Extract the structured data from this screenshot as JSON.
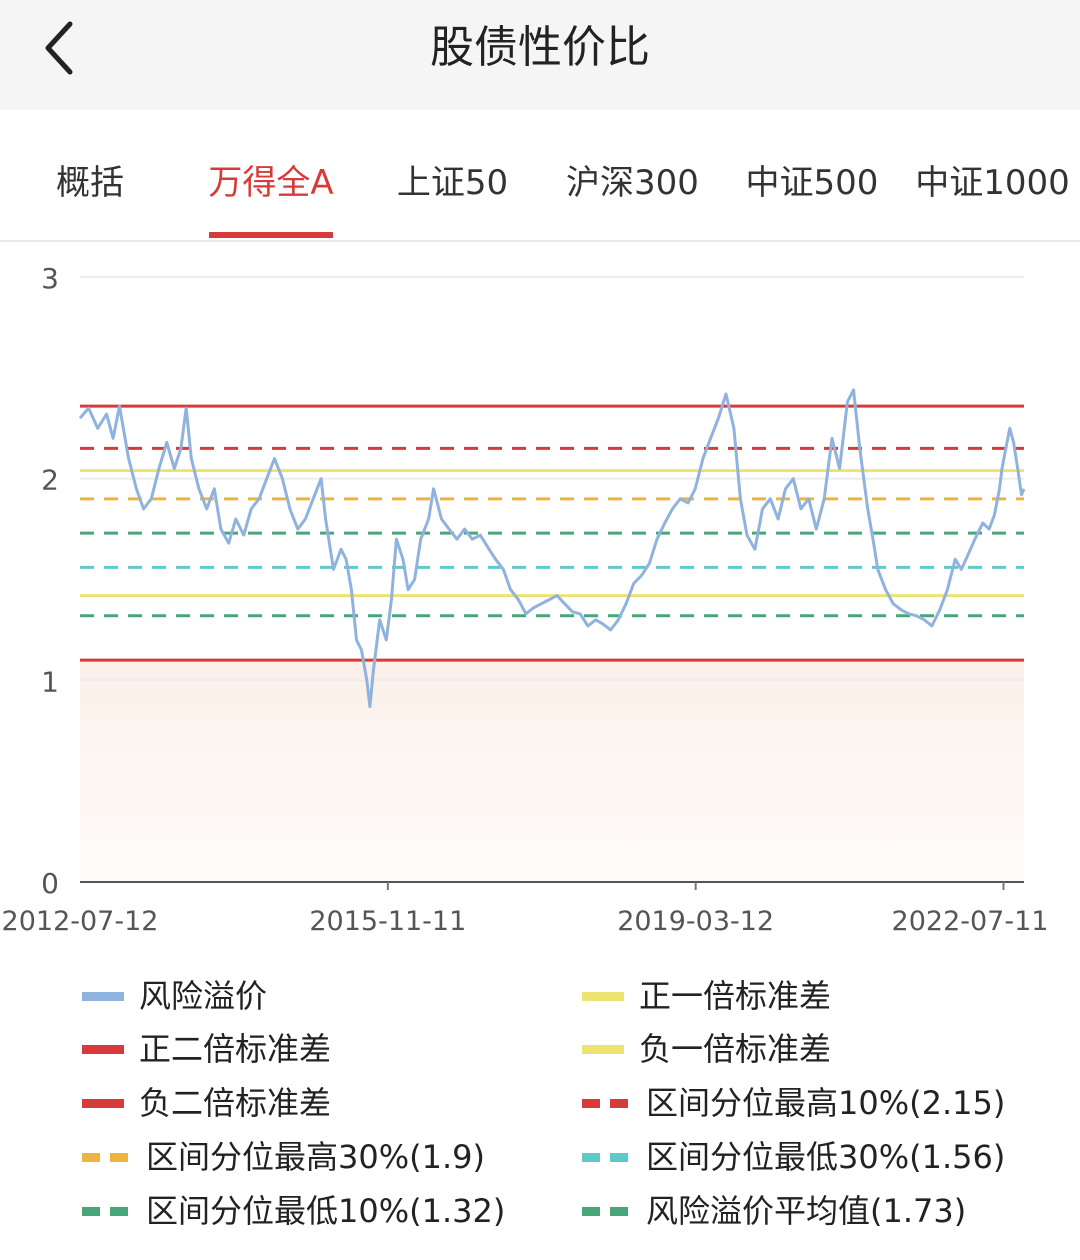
{
  "header": {
    "title": "股债性价比",
    "back_icon": "chevron-left-icon"
  },
  "tabs": [
    {
      "label": "概括",
      "active": false
    },
    {
      "label": "万得全A",
      "active": true
    },
    {
      "label": "上证50",
      "active": false
    },
    {
      "label": "沪深300",
      "active": false
    },
    {
      "label": "中证500",
      "active": false
    },
    {
      "label": "中证1000",
      "active": false
    }
  ],
  "colors": {
    "accent": "#d83a3a",
    "risk": "#8fb3de",
    "red": "#d83a3a",
    "yellow": "#ece470",
    "orange": "#efb43f",
    "cyan": "#5ec9c8",
    "green": "#47a77a"
  },
  "legend": [
    {
      "label": "风险溢价",
      "color": "#8fb3de",
      "style": "solid"
    },
    {
      "label": "正一倍标准差",
      "color": "#ece470",
      "style": "solid"
    },
    {
      "label": "正二倍标准差",
      "color": "#d83a3a",
      "style": "solid"
    },
    {
      "label": "负一倍标准差",
      "color": "#ece470",
      "style": "solid"
    },
    {
      "label": "负二倍标准差",
      "color": "#d83a3a",
      "style": "solid"
    },
    {
      "label": "区间分位最高10%(2.15)",
      "color": "#d83a3a",
      "style": "dashed"
    },
    {
      "label": "区间分位最高30%(1.9)",
      "color": "#efb43f",
      "style": "dashed"
    },
    {
      "label": "区间分位最低30%(1.56)",
      "color": "#5ec9c8",
      "style": "dashed"
    },
    {
      "label": "区间分位最低10%(1.32)",
      "color": "#47a77a",
      "style": "dashed"
    },
    {
      "label": "风险溢价平均值(1.73)",
      "color": "#47a77a",
      "style": "dashed"
    }
  ],
  "chart_data": {
    "type": "line",
    "x_range": [
      "2012-07-12",
      "2022-09-30"
    ],
    "xticks": [
      "2012-07-12",
      "2015-11-11",
      "2019-03-12",
      "2022-07-11"
    ],
    "ylim": [
      0,
      3
    ],
    "yticks": [
      "0",
      "1",
      "2",
      "3"
    ],
    "grid": true,
    "series": [
      {
        "name": "风险溢价",
        "color": "#8fb3de",
        "points": [
          [
            "2012-07-12",
            2.3
          ],
          [
            "2012-08-15",
            2.35
          ],
          [
            "2012-09-20",
            2.25
          ],
          [
            "2012-10-25",
            2.32
          ],
          [
            "2012-11-20",
            2.2
          ],
          [
            "2012-12-15",
            2.36
          ],
          [
            "2013-01-20",
            2.1
          ],
          [
            "2013-02-20",
            1.95
          ],
          [
            "2013-03-20",
            1.85
          ],
          [
            "2013-04-20",
            1.9
          ],
          [
            "2013-05-20",
            2.05
          ],
          [
            "2013-06-20",
            2.18
          ],
          [
            "2013-07-20",
            2.05
          ],
          [
            "2013-08-15",
            2.15
          ],
          [
            "2013-09-05",
            2.35
          ],
          [
            "2013-09-25",
            2.1
          ],
          [
            "2013-10-25",
            1.95
          ],
          [
            "2013-11-25",
            1.85
          ],
          [
            "2013-12-25",
            1.95
          ],
          [
            "2014-01-20",
            1.75
          ],
          [
            "2014-02-20",
            1.68
          ],
          [
            "2014-03-20",
            1.8
          ],
          [
            "2014-04-20",
            1.72
          ],
          [
            "2014-05-20",
            1.85
          ],
          [
            "2014-06-20",
            1.9
          ],
          [
            "2014-07-20",
            2.0
          ],
          [
            "2014-08-20",
            2.1
          ],
          [
            "2014-09-20",
            2.0
          ],
          [
            "2014-10-20",
            1.85
          ],
          [
            "2014-11-20",
            1.75
          ],
          [
            "2014-12-20",
            1.8
          ],
          [
            "2015-01-20",
            1.9
          ],
          [
            "2015-02-20",
            2.0
          ],
          [
            "2015-03-10",
            1.8
          ],
          [
            "2015-04-10",
            1.55
          ],
          [
            "2015-05-10",
            1.65
          ],
          [
            "2015-05-30",
            1.6
          ],
          [
            "2015-06-20",
            1.45
          ],
          [
            "2015-07-10",
            1.2
          ],
          [
            "2015-07-30",
            1.15
          ],
          [
            "2015-08-20",
            1.0
          ],
          [
            "2015-09-01",
            0.87
          ],
          [
            "2015-09-15",
            1.05
          ],
          [
            "2015-10-10",
            1.3
          ],
          [
            "2015-11-05",
            1.2
          ],
          [
            "2015-11-25",
            1.4
          ],
          [
            "2015-12-15",
            1.7
          ],
          [
            "2016-01-10",
            1.6
          ],
          [
            "2016-01-30",
            1.45
          ],
          [
            "2016-02-25",
            1.5
          ],
          [
            "2016-03-20",
            1.7
          ],
          [
            "2016-04-20",
            1.8
          ],
          [
            "2016-05-10",
            1.95
          ],
          [
            "2016-06-10",
            1.8
          ],
          [
            "2016-07-10",
            1.75
          ],
          [
            "2016-08-10",
            1.7
          ],
          [
            "2016-09-10",
            1.75
          ],
          [
            "2016-10-10",
            1.7
          ],
          [
            "2016-11-10",
            1.72
          ],
          [
            "2016-12-10",
            1.66
          ],
          [
            "2017-01-10",
            1.6
          ],
          [
            "2017-02-10",
            1.55
          ],
          [
            "2017-03-10",
            1.45
          ],
          [
            "2017-04-10",
            1.4
          ],
          [
            "2017-05-10",
            1.33
          ],
          [
            "2017-06-10",
            1.36
          ],
          [
            "2017-07-10",
            1.38
          ],
          [
            "2017-08-10",
            1.4
          ],
          [
            "2017-09-10",
            1.42
          ],
          [
            "2017-10-10",
            1.38
          ],
          [
            "2017-11-10",
            1.34
          ],
          [
            "2017-12-10",
            1.33
          ],
          [
            "2018-01-10",
            1.27
          ],
          [
            "2018-02-10",
            1.3
          ],
          [
            "2018-03-10",
            1.28
          ],
          [
            "2018-04-10",
            1.25
          ],
          [
            "2018-05-10",
            1.3
          ],
          [
            "2018-06-10",
            1.38
          ],
          [
            "2018-07-10",
            1.48
          ],
          [
            "2018-08-10",
            1.52
          ],
          [
            "2018-09-10",
            1.58
          ],
          [
            "2018-10-10",
            1.7
          ],
          [
            "2018-11-10",
            1.78
          ],
          [
            "2018-12-10",
            1.85
          ],
          [
            "2019-01-10",
            1.9
          ],
          [
            "2019-02-10",
            1.88
          ],
          [
            "2019-03-10",
            1.95
          ],
          [
            "2019-04-10",
            2.1
          ],
          [
            "2019-05-10",
            2.2
          ],
          [
            "2019-06-10",
            2.3
          ],
          [
            "2019-07-10",
            2.42
          ],
          [
            "2019-08-10",
            2.25
          ],
          [
            "2019-09-05",
            1.9
          ],
          [
            "2019-10-01",
            1.72
          ],
          [
            "2019-11-01",
            1.65
          ],
          [
            "2019-12-01",
            1.85
          ],
          [
            "2020-01-01",
            1.9
          ],
          [
            "2020-02-01",
            1.8
          ],
          [
            "2020-03-01",
            1.95
          ],
          [
            "2020-04-01",
            2.0
          ],
          [
            "2020-05-01",
            1.85
          ],
          [
            "2020-06-01",
            1.9
          ],
          [
            "2020-07-01",
            1.75
          ],
          [
            "2020-08-01",
            1.9
          ],
          [
            "2020-09-01",
            2.2
          ],
          [
            "2020-10-01",
            2.05
          ],
          [
            "2020-11-01",
            2.38
          ],
          [
            "2020-11-25",
            2.44
          ],
          [
            "2020-12-20",
            2.15
          ],
          [
            "2021-01-20",
            1.85
          ],
          [
            "2021-02-10",
            1.7
          ],
          [
            "2021-03-01",
            1.55
          ],
          [
            "2021-04-01",
            1.45
          ],
          [
            "2021-05-01",
            1.38
          ],
          [
            "2021-06-01",
            1.35
          ],
          [
            "2021-07-01",
            1.33
          ],
          [
            "2021-08-01",
            1.32
          ],
          [
            "2021-09-01",
            1.3
          ],
          [
            "2021-10-01",
            1.27
          ],
          [
            "2021-11-01",
            1.35
          ],
          [
            "2021-12-01",
            1.45
          ],
          [
            "2022-01-01",
            1.6
          ],
          [
            "2022-01-25",
            1.55
          ],
          [
            "2022-02-20",
            1.62
          ],
          [
            "2022-03-20",
            1.7
          ],
          [
            "2022-04-20",
            1.78
          ],
          [
            "2022-05-15",
            1.75
          ],
          [
            "2022-06-05",
            1.82
          ],
          [
            "2022-06-25",
            1.95
          ],
          [
            "2022-07-05",
            2.05
          ],
          [
            "2022-07-20",
            2.15
          ],
          [
            "2022-08-05",
            2.25
          ],
          [
            "2022-08-20",
            2.18
          ],
          [
            "2022-09-05",
            2.05
          ],
          [
            "2022-09-20",
            1.92
          ],
          [
            "2022-09-30",
            1.95
          ]
        ]
      }
    ],
    "reference_lines": [
      {
        "name": "正二倍标准差",
        "value": 2.36,
        "color": "#d83a3a",
        "style": "solid"
      },
      {
        "name": "区间分位最高10%(2.15)",
        "value": 2.15,
        "color": "#d83a3a",
        "style": "dashed"
      },
      {
        "name": "正一倍标准差",
        "value": 2.04,
        "color": "#ece470",
        "style": "solid"
      },
      {
        "name": "区间分位最高30%(1.9)",
        "value": 1.9,
        "color": "#efb43f",
        "style": "dashed"
      },
      {
        "name": "风险溢价平均值(1.73)",
        "value": 1.73,
        "color": "#47a77a",
        "style": "dashed"
      },
      {
        "name": "区间分位最低30%(1.56)",
        "value": 1.56,
        "color": "#5ec9c8",
        "style": "dashed"
      },
      {
        "name": "负一倍标准差",
        "value": 1.42,
        "color": "#ece470",
        "style": "solid"
      },
      {
        "name": "区间分位最低10%(1.32)",
        "value": 1.32,
        "color": "#47a77a",
        "style": "dashed"
      },
      {
        "name": "负二倍标准差",
        "value": 1.1,
        "color": "#d83a3a",
        "style": "solid"
      }
    ]
  }
}
